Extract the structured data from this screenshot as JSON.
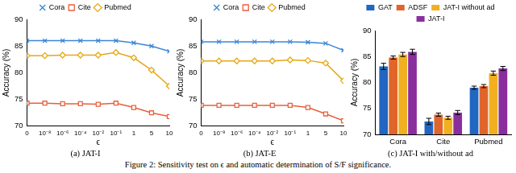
{
  "caption": "Figure 2: Sensitivity test on ϵ and automatic determination of S/F significance.",
  "chart_data": [
    {
      "type": "line",
      "title": "(a) JAT-I",
      "xlabel": "ϵ",
      "ylabel": "Accuracy (%)",
      "categories": [
        "0",
        "10⁻⁸",
        "10⁻⁶",
        "10⁻⁴",
        "10⁻²",
        "10⁻¹",
        "1",
        "5",
        "10"
      ],
      "series": [
        {
          "name": "Cora",
          "color": "#3b86d6",
          "marker": "x",
          "values": [
            86,
            86,
            86,
            86,
            86,
            86,
            85.6,
            85,
            84
          ]
        },
        {
          "name": "Cite",
          "color": "#e8603c",
          "marker": "square",
          "values": [
            74.3,
            74.3,
            74.2,
            74.2,
            74.1,
            74.3,
            73.5,
            72.5,
            71.8
          ]
        },
        {
          "name": "Pubmed",
          "color": "#e6a817",
          "marker": "diamond",
          "values": [
            83.2,
            83.2,
            83.3,
            83.3,
            83.3,
            83.8,
            82.8,
            80.5,
            77.5
          ]
        }
      ],
      "ylim": [
        70,
        90
      ],
      "yticks": [
        70,
        75,
        80,
        85,
        90
      ],
      "grid": false,
      "legend": "top"
    },
    {
      "type": "line",
      "title": "(b) JAT-E",
      "xlabel": "ϵ",
      "ylabel": "Accuracy (%)",
      "categories": [
        "0",
        "10⁻⁸",
        "10⁻⁶",
        "10⁻⁴",
        "10⁻²",
        "10⁻¹",
        "1",
        "5",
        "10"
      ],
      "series": [
        {
          "name": "Cora",
          "color": "#3b86d6",
          "marker": "x",
          "values": [
            85.8,
            85.8,
            85.8,
            85.8,
            85.8,
            85.8,
            85.7,
            85.5,
            84.2
          ]
        },
        {
          "name": "Cite",
          "color": "#e8603c",
          "marker": "square",
          "values": [
            73.9,
            73.9,
            73.9,
            73.9,
            73.9,
            73.9,
            73.5,
            72.3,
            71
          ]
        },
        {
          "name": "Pubmed",
          "color": "#e6a817",
          "marker": "diamond",
          "values": [
            82.2,
            82.2,
            82.2,
            82.2,
            82.2,
            82.4,
            82.3,
            81.8,
            78.5
          ]
        }
      ],
      "ylim": [
        70,
        90
      ],
      "yticks": [
        70,
        75,
        80,
        85,
        90
      ],
      "grid": false,
      "legend": "top"
    },
    {
      "type": "bar",
      "title": "(c) JAT-I with/without ad",
      "ylabel": "Accuracy (%)",
      "categories": [
        "Cora",
        "Cite",
        "Pubmed"
      ],
      "series": [
        {
          "name": "GAT",
          "color": "#2166c0",
          "values": [
            83.1,
            72.5,
            79.0
          ],
          "errors": [
            0.6,
            0.6,
            0.3
          ]
        },
        {
          "name": "ADSF",
          "color": "#e0652b",
          "values": [
            84.8,
            73.8,
            79.3
          ],
          "errors": [
            0.3,
            0.3,
            0.3
          ]
        },
        {
          "name": "JAT-I without ad",
          "color": "#f0b020",
          "values": [
            85.4,
            73.2,
            81.8
          ],
          "errors": [
            0.4,
            0.3,
            0.4
          ]
        },
        {
          "name": "JAT-I",
          "color": "#8a2e9e",
          "values": [
            85.9,
            74.2,
            82.7
          ],
          "errors": [
            0.5,
            0.4,
            0.4
          ]
        }
      ],
      "ylim": [
        70,
        90
      ],
      "yticks": [
        70,
        75,
        80,
        85,
        90
      ],
      "grid": false,
      "legend": "top"
    }
  ]
}
